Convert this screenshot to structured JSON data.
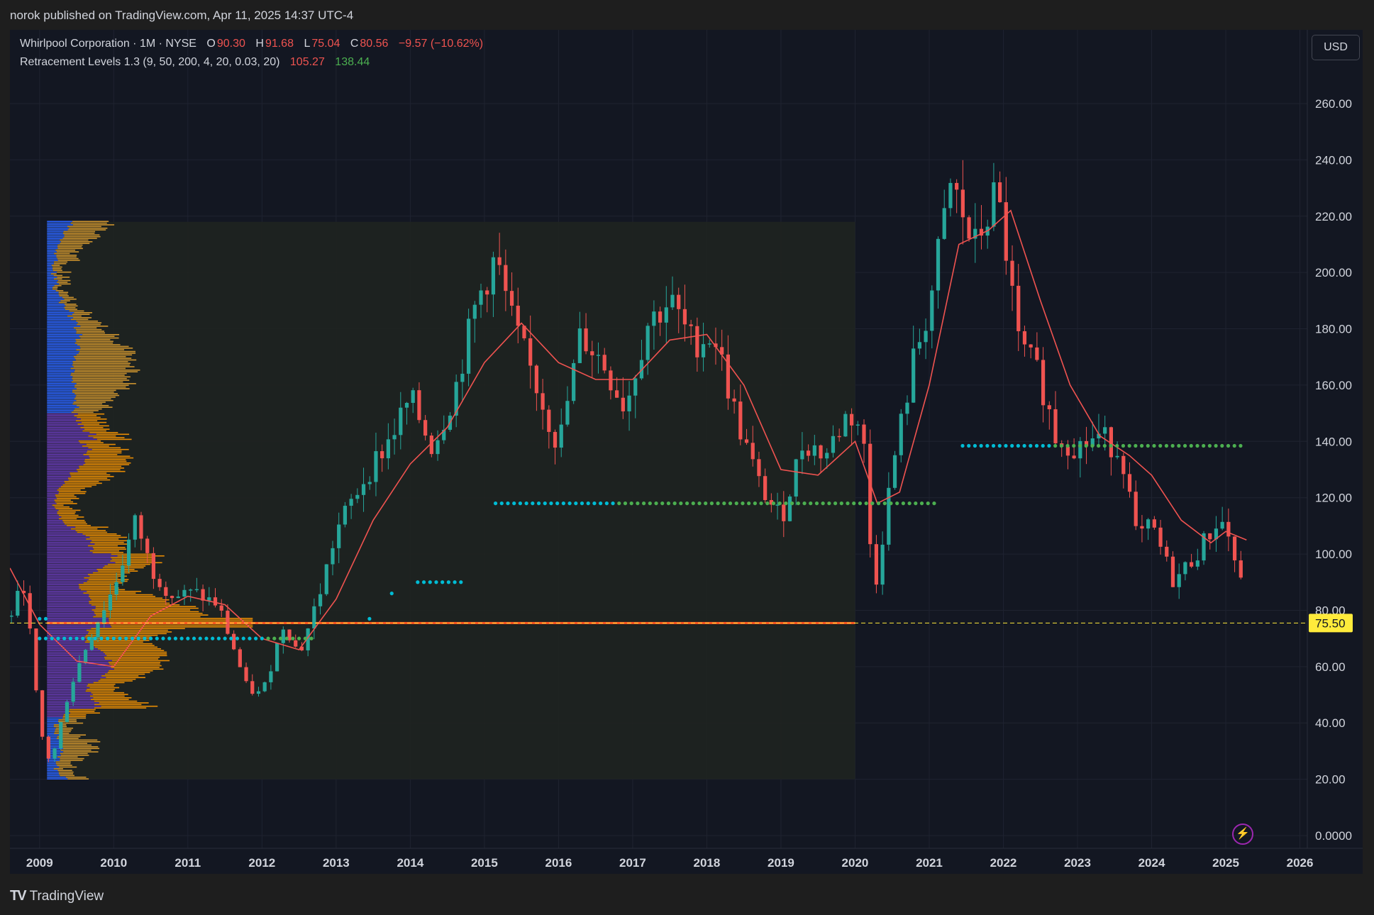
{
  "header": {
    "publish_line": "norok published on TradingView.com, Apr 11, 2025 14:37 UTC-4"
  },
  "legend": {
    "symbol_line": "Whirlpool Corporation · 1M · NYSE",
    "o_label": "O",
    "o_value": "90.30",
    "h_label": "H",
    "h_value": "91.68",
    "l_label": "L",
    "l_value": "75.04",
    "c_label": "C",
    "c_value": "80.56",
    "change": "−9.57 (−10.62%)",
    "indicator_name": "Retracement Levels 1.3 (9, 50, 200, 4, 20, 0.03, 20)",
    "indicator_value_1": "105.27",
    "indicator_value_2": "138.44"
  },
  "currency_button": "USD",
  "price_tag": "75.50",
  "footer": {
    "brand": "TradingView",
    "logo": "TV"
  },
  "icons": {
    "flash": "lightning-icon"
  },
  "colors": {
    "background": "#131722",
    "up": "#26a69a",
    "down": "#ef5350",
    "ma": "#f05350",
    "level_cyan": "#00bcd4",
    "level_green": "#4caf50",
    "vp_blue": "#2962ff",
    "vp_purple": "#673ab7",
    "vp_orange": "#ff9800",
    "vp_gold": "#e0a030",
    "poc": "#ff5722",
    "price_tag": "#ffeb3b"
  },
  "chart_data": {
    "type": "candlestick",
    "timeframe": "1M",
    "y_axis_ticks": [
      "260.00",
      "240.00",
      "220.00",
      "200.00",
      "180.00",
      "160.00",
      "140.00",
      "120.00",
      "100.00",
      "80.00",
      "60.00",
      "40.00",
      "20.00",
      "0.0000"
    ],
    "x_axis_ticks": [
      "2009",
      "2010",
      "2011",
      "2012",
      "2013",
      "2014",
      "2015",
      "2016",
      "2017",
      "2018",
      "2019",
      "2020",
      "2021",
      "2022",
      "2023",
      "2024",
      "2025",
      "2026"
    ],
    "x_range": [
      2008.6,
      2026.1
    ],
    "ylim": [
      0,
      275
    ],
    "last_price": 75.5,
    "anchors": [
      [
        2008.6,
        78
      ],
      [
        2008.8,
        90
      ],
      [
        2009.0,
        38
      ],
      [
        2009.15,
        25
      ],
      [
        2009.4,
        52
      ],
      [
        2009.7,
        72
      ],
      [
        2010.0,
        88
      ],
      [
        2010.3,
        112
      ],
      [
        2010.5,
        95
      ],
      [
        2010.8,
        85
      ],
      [
        2011.1,
        86
      ],
      [
        2011.4,
        82
      ],
      [
        2011.6,
        68
      ],
      [
        2011.8,
        52
      ],
      [
        2012.0,
        50
      ],
      [
        2012.3,
        76
      ],
      [
        2012.5,
        64
      ],
      [
        2012.8,
        88
      ],
      [
        2013.0,
        108
      ],
      [
        2013.4,
        128
      ],
      [
        2013.7,
        140
      ],
      [
        2014.0,
        155
      ],
      [
        2014.3,
        138
      ],
      [
        2014.6,
        158
      ],
      [
        2014.9,
        190
      ],
      [
        2015.15,
        205
      ],
      [
        2015.4,
        180
      ],
      [
        2015.7,
        160
      ],
      [
        2016.0,
        138
      ],
      [
        2016.3,
        178
      ],
      [
        2016.6,
        168
      ],
      [
        2016.9,
        152
      ],
      [
        2017.2,
        182
      ],
      [
        2017.5,
        190
      ],
      [
        2017.8,
        175
      ],
      [
        2018.1,
        178
      ],
      [
        2018.4,
        148
      ],
      [
        2018.7,
        125
      ],
      [
        2019.0,
        112
      ],
      [
        2019.3,
        140
      ],
      [
        2019.6,
        135
      ],
      [
        2019.9,
        150
      ],
      [
        2020.1,
        145
      ],
      [
        2020.25,
        85
      ],
      [
        2020.5,
        130
      ],
      [
        2020.8,
        170
      ],
      [
        2021.0,
        188
      ],
      [
        2021.3,
        232
      ],
      [
        2021.6,
        208
      ],
      [
        2021.9,
        228
      ],
      [
        2022.0,
        215
      ],
      [
        2022.2,
        175
      ],
      [
        2022.5,
        162
      ],
      [
        2022.7,
        142
      ],
      [
        2023.0,
        138
      ],
      [
        2023.3,
        142
      ],
      [
        2023.6,
        136
      ],
      [
        2023.8,
        105
      ],
      [
        2024.0,
        110
      ],
      [
        2024.3,
        90
      ],
      [
        2024.6,
        100
      ],
      [
        2024.9,
        112
      ],
      [
        2025.0,
        110
      ],
      [
        2025.15,
        95
      ],
      [
        2025.28,
        80.56
      ]
    ],
    "moving_average": [
      [
        2008.6,
        95
      ],
      [
        2009.0,
        75
      ],
      [
        2009.5,
        62
      ],
      [
        2010.0,
        60
      ],
      [
        2010.5,
        78
      ],
      [
        2011.0,
        85
      ],
      [
        2011.5,
        82
      ],
      [
        2012.0,
        70
      ],
      [
        2012.5,
        66
      ],
      [
        2013.0,
        84
      ],
      [
        2013.5,
        112
      ],
      [
        2014.0,
        132
      ],
      [
        2014.5,
        145
      ],
      [
        2015.0,
        168
      ],
      [
        2015.5,
        182
      ],
      [
        2016.0,
        168
      ],
      [
        2016.5,
        162
      ],
      [
        2017.0,
        162
      ],
      [
        2017.5,
        176
      ],
      [
        2018.0,
        178
      ],
      [
        2018.5,
        160
      ],
      [
        2019.0,
        130
      ],
      [
        2019.5,
        128
      ],
      [
        2020.0,
        140
      ],
      [
        2020.3,
        118
      ],
      [
        2020.6,
        122
      ],
      [
        2021.0,
        160
      ],
      [
        2021.4,
        210
      ],
      [
        2021.8,
        215
      ],
      [
        2022.1,
        222
      ],
      [
        2022.5,
        190
      ],
      [
        2022.9,
        160
      ],
      [
        2023.3,
        142
      ],
      [
        2023.7,
        135
      ],
      [
        2024.0,
        128
      ],
      [
        2024.4,
        112
      ],
      [
        2024.8,
        104
      ],
      [
        2025.0,
        108
      ],
      [
        2025.28,
        105
      ]
    ],
    "dotted_levels": [
      {
        "x": [
          2009.0,
          2012.7
        ],
        "y": 70,
        "color": "#00bcd4",
        "to": 2012.0,
        "rest": "#4caf50"
      },
      {
        "x": [
          2009.0,
          2009.1
        ],
        "y": 77,
        "color": "#00bcd4"
      },
      {
        "x": [
          2013.45,
          2013.45
        ],
        "y": 77,
        "color": "#00bcd4"
      },
      {
        "x": [
          2013.75,
          2013.75
        ],
        "y": 86,
        "color": "#00bcd4"
      },
      {
        "x": [
          2014.1,
          2014.7
        ],
        "y": 90,
        "color": "#00bcd4"
      },
      {
        "x": [
          2015.15,
          2021.1
        ],
        "y": 118,
        "color": "#00bcd4",
        "to": 2016.75,
        "rest": "#4caf50"
      },
      {
        "x": [
          2021.45,
          2025.28
        ],
        "y": 138.44,
        "color": "#00bcd4",
        "to": 2022.65,
        "rest": "#4caf50"
      }
    ],
    "volume_profile": {
      "x_start": 2009.1,
      "x_end": 2020.0,
      "y_range": [
        20,
        218
      ],
      "poc": 75.5
    }
  }
}
